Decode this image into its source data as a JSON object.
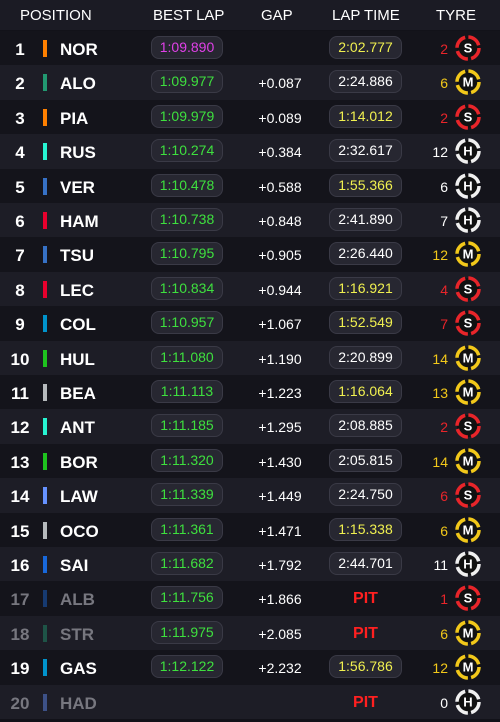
{
  "header": {
    "position": "POSITION",
    "best_lap": "BEST LAP",
    "gap": "GAP",
    "lap_time": "LAP TIME",
    "tyre": "TYRE"
  },
  "rows": [
    {
      "pos": 1,
      "driver": "NOR",
      "team_color": "#ff8000",
      "best_lap": "1:09.890",
      "best_lap_color": "#e040e8",
      "lap_time": "2:02.777",
      "lap_time_color": "#f0f050",
      "tyre_laps": 2,
      "tyre": "S"
    },
    {
      "pos": 2,
      "driver": "ALO",
      "team_color": "#229971",
      "best_lap": "1:09.977",
      "best_lap_color": "#3ee03e",
      "gap": "+0.087",
      "lap_time": "2:24.886",
      "lap_time_color": "#ffffff",
      "tyre_laps": 6,
      "tyre": "M"
    },
    {
      "pos": 3,
      "driver": "PIA",
      "team_color": "#ff8000",
      "best_lap": "1:09.979",
      "best_lap_color": "#3ee03e",
      "gap": "+0.089",
      "lap_time": "1:14.012",
      "lap_time_color": "#f0f050",
      "tyre_laps": 2,
      "tyre": "S"
    },
    {
      "pos": 4,
      "driver": "RUS",
      "team_color": "#27f4d2",
      "best_lap": "1:10.274",
      "best_lap_color": "#3ee03e",
      "gap": "+0.384",
      "lap_time": "2:32.617",
      "lap_time_color": "#ffffff",
      "tyre_laps": 12,
      "tyre": "H"
    },
    {
      "pos": 5,
      "driver": "VER",
      "team_color": "#3671c6",
      "best_lap": "1:10.478",
      "best_lap_color": "#3ee03e",
      "gap": "+0.588",
      "lap_time": "1:55.366",
      "lap_time_color": "#f0f050",
      "tyre_laps": 6,
      "tyre": "H"
    },
    {
      "pos": 6,
      "driver": "HAM",
      "team_color": "#e8002d",
      "best_lap": "1:10.738",
      "best_lap_color": "#3ee03e",
      "gap": "+0.848",
      "lap_time": "2:41.890",
      "lap_time_color": "#ffffff",
      "tyre_laps": 7,
      "tyre": "H"
    },
    {
      "pos": 7,
      "driver": "TSU",
      "team_color": "#3671c6",
      "best_lap": "1:10.795",
      "best_lap_color": "#3ee03e",
      "gap": "+0.905",
      "lap_time": "2:26.440",
      "lap_time_color": "#ffffff",
      "tyre_laps": 12,
      "tyre": "M"
    },
    {
      "pos": 8,
      "driver": "LEC",
      "team_color": "#e8002d",
      "best_lap": "1:10.834",
      "best_lap_color": "#3ee03e",
      "gap": "+0.944",
      "lap_time": "1:16.921",
      "lap_time_color": "#f0f050",
      "tyre_laps": 4,
      "tyre": "S"
    },
    {
      "pos": 9,
      "driver": "COL",
      "team_color": "#0093cc",
      "best_lap": "1:10.957",
      "best_lap_color": "#3ee03e",
      "gap": "+1.067",
      "lap_time": "1:52.549",
      "lap_time_color": "#f0f050",
      "tyre_laps": 7,
      "tyre": "S"
    },
    {
      "pos": 10,
      "driver": "HUL",
      "team_color": "#1ec31e",
      "best_lap": "1:11.080",
      "best_lap_color": "#3ee03e",
      "gap": "+1.190",
      "lap_time": "2:20.899",
      "lap_time_color": "#ffffff",
      "tyre_laps": 14,
      "tyre": "M"
    },
    {
      "pos": 11,
      "driver": "BEA",
      "team_color": "#b6babd",
      "best_lap": "1:11.113",
      "best_lap_color": "#3ee03e",
      "gap": "+1.223",
      "lap_time": "1:16.064",
      "lap_time_color": "#f0f050",
      "tyre_laps": 13,
      "tyre": "M"
    },
    {
      "pos": 12,
      "driver": "ANT",
      "team_color": "#27f4d2",
      "best_lap": "1:11.185",
      "best_lap_color": "#3ee03e",
      "gap": "+1.295",
      "lap_time": "2:08.885",
      "lap_time_color": "#ffffff",
      "tyre_laps": 2,
      "tyre": "S"
    },
    {
      "pos": 13,
      "driver": "BOR",
      "team_color": "#1ec31e",
      "best_lap": "1:11.320",
      "best_lap_color": "#3ee03e",
      "gap": "+1.430",
      "lap_time": "2:05.815",
      "lap_time_color": "#ffffff",
      "tyre_laps": 14,
      "tyre": "M"
    },
    {
      "pos": 14,
      "driver": "LAW",
      "team_color": "#6692ff",
      "best_lap": "1:11.339",
      "best_lap_color": "#3ee03e",
      "gap": "+1.449",
      "lap_time": "2:24.750",
      "lap_time_color": "#ffffff",
      "tyre_laps": 6,
      "tyre": "S"
    },
    {
      "pos": 15,
      "driver": "OCO",
      "team_color": "#b6babd",
      "best_lap": "1:11.361",
      "best_lap_color": "#3ee03e",
      "gap": "+1.471",
      "lap_time": "1:15.338",
      "lap_time_color": "#f0f050",
      "tyre_laps": 6,
      "tyre": "M"
    },
    {
      "pos": 16,
      "driver": "SAI",
      "team_color": "#1868db",
      "best_lap": "1:11.682",
      "best_lap_color": "#3ee03e",
      "gap": "+1.792",
      "lap_time": "2:44.701",
      "lap_time_color": "#ffffff",
      "tyre_laps": 11,
      "tyre": "H"
    },
    {
      "pos": 17,
      "driver": "ALB",
      "team_color": "#1868db",
      "best_lap": "1:11.756",
      "best_lap_color": "#3ee03e",
      "gap": "+1.866",
      "lap_time": "PIT",
      "lap_time_color": "#ff2020",
      "tyre_laps": 1,
      "tyre": "S"
    },
    {
      "pos": 18,
      "driver": "STR",
      "team_color": "#229971",
      "best_lap": "1:11.975",
      "best_lap_color": "#3ee03e",
      "gap": "+2.085",
      "lap_time": "PIT",
      "lap_time_color": "#ff2020",
      "tyre_laps": 6,
      "tyre": "M"
    },
    {
      "pos": 19,
      "driver": "GAS",
      "team_color": "#0093cc",
      "best_lap": "1:12.122",
      "best_lap_color": "#3ee03e",
      "gap": "+2.232",
      "lap_time": "1:56.786",
      "lap_time_color": "#f0f050",
      "tyre_laps": 12,
      "tyre": "M"
    },
    {
      "pos": 20,
      "driver": "HAD",
      "team_color": "#6692ff",
      "lap_time": "PIT",
      "lap_time_color": "#ff2020",
      "tyre_laps": 0,
      "tyre": "H"
    }
  ]
}
